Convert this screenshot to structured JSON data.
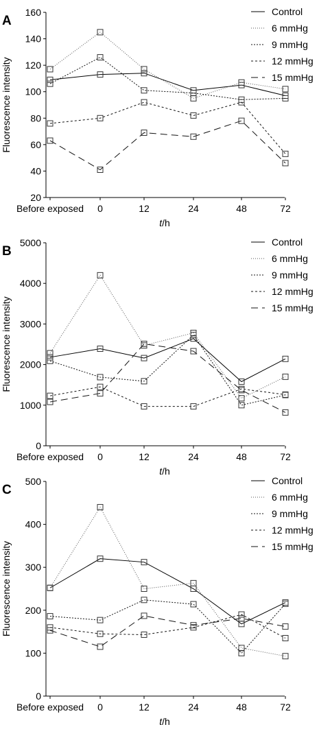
{
  "chart_data": [
    {
      "type": "line",
      "panel": "A",
      "categories": [
        "Before exposed",
        "0",
        "12",
        "24",
        "48",
        "72"
      ],
      "xlabel_italic": "t",
      "xlabel_unit": "/h",
      "ylabel": "Fluorescence intensity",
      "ylim": [
        20,
        160
      ],
      "yticks": [
        20,
        40,
        60,
        80,
        100,
        120,
        140,
        160
      ],
      "legend_position": "top-right",
      "grid": false,
      "series": [
        {
          "name": "Control",
          "style": "solid",
          "values": [
            109,
            113,
            114,
            101,
            105,
            97
          ]
        },
        {
          "name": "6 mmHg",
          "style": "dotted",
          "values": [
            117,
            145,
            117,
            95,
            107,
            102
          ]
        },
        {
          "name": "9 mmHg",
          "style": "finedash",
          "values": [
            106,
            126,
            101,
            99,
            94,
            95
          ]
        },
        {
          "name": "12 mmHg",
          "style": "dashed",
          "values": [
            76,
            80,
            92,
            82,
            92,
            53
          ]
        },
        {
          "name": "15 mmHg",
          "style": "longdash",
          "values": [
            63,
            41,
            69,
            66,
            78,
            46
          ]
        }
      ]
    },
    {
      "type": "line",
      "panel": "B",
      "categories": [
        "Before exposed",
        "0",
        "12",
        "24",
        "48",
        "72"
      ],
      "xlabel_italic": "t",
      "xlabel_unit": "/h",
      "ylabel": "Fluorescence intensity",
      "ylim": [
        0,
        5000
      ],
      "yticks": [
        0,
        1000,
        2000,
        3000,
        4000,
        5000
      ],
      "legend_position": "top-right",
      "grid": false,
      "series": [
        {
          "name": "Control",
          "style": "solid",
          "values": [
            2180,
            2390,
            2160,
            2640,
            1580,
            2140
          ]
        },
        {
          "name": "6 mmHg",
          "style": "dotted",
          "values": [
            2280,
            4200,
            2470,
            2780,
            1170,
            1700
          ]
        },
        {
          "name": "9 mmHg",
          "style": "finedash",
          "values": [
            2090,
            1690,
            1590,
            2730,
            1000,
            1250
          ]
        },
        {
          "name": "12 mmHg",
          "style": "dashed",
          "values": [
            1230,
            1450,
            970,
            970,
            1400,
            1260
          ]
        },
        {
          "name": "15 mmHg",
          "style": "longdash",
          "values": [
            1080,
            1290,
            2510,
            2330,
            1370,
            820
          ]
        }
      ]
    },
    {
      "type": "line",
      "panel": "C",
      "categories": [
        "Before exposed",
        "0",
        "12",
        "24",
        "48",
        "72"
      ],
      "xlabel_italic": "t",
      "xlabel_unit": "/h",
      "ylabel": "Fluorescence intensity",
      "ylim": [
        0,
        500
      ],
      "yticks": [
        0,
        100,
        200,
        300,
        400,
        500
      ],
      "legend_position": "top-right",
      "grid": false,
      "series": [
        {
          "name": "Control",
          "style": "solid",
          "values": [
            252,
            320,
            312,
            250,
            168,
            218
          ]
        },
        {
          "name": "6 mmHg",
          "style": "dotted",
          "values": [
            252,
            440,
            250,
            263,
            112,
            93
          ]
        },
        {
          "name": "9 mmHg",
          "style": "finedash",
          "values": [
            186,
            177,
            224,
            214,
            100,
            215
          ]
        },
        {
          "name": "12 mmHg",
          "style": "dashed",
          "values": [
            160,
            145,
            143,
            160,
            190,
            135
          ]
        },
        {
          "name": "15 mmHg",
          "style": "longdash",
          "values": [
            153,
            115,
            187,
            165,
            181,
            162
          ]
        }
      ]
    }
  ]
}
